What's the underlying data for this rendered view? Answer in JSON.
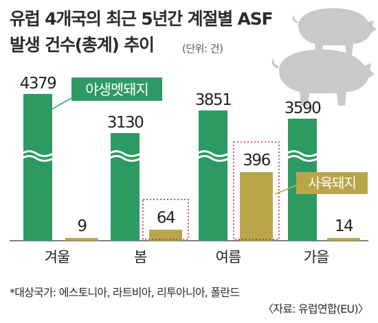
{
  "chart_data": {
    "type": "bar",
    "title_line1": "유럽 4개국의 최근 5년간 계절별 ASF",
    "title_line2": "발생 건수(총계) 추이",
    "unit": "(단위: 건)",
    "categories": [
      "겨울",
      "봄",
      "여름",
      "가을"
    ],
    "series": [
      {
        "name": "야생멧돼지",
        "values": [
          4379,
          3130,
          3851,
          3590
        ],
        "color": "#2e9a63"
      },
      {
        "name": "사육돼지",
        "values": [
          9,
          64,
          396,
          14
        ],
        "color": "#b9a64a"
      }
    ],
    "value_labels": {
      "wild": [
        "4379",
        "3130",
        "3851",
        "3590"
      ],
      "farm": [
        "9",
        "64",
        "396",
        "14"
      ]
    },
    "axis_break": true,
    "highlight_boxes": [
      "봄",
      "여름"
    ],
    "footnote": "*대상국가: 에스토니아, 라트비아, 리투아니아, 폴란드",
    "source": "〈자료: 유럽연합(EU)〉"
  }
}
